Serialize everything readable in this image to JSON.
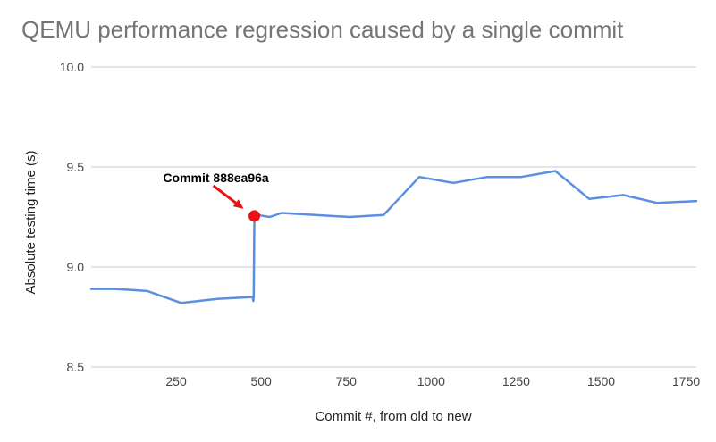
{
  "chart_data": {
    "type": "line",
    "title": "QEMU performance regression caused by a single commit",
    "xlabel": "Commit #, from old to new",
    "ylabel": "Absolute testing time (s)",
    "xlim": [
      0,
      1780
    ],
    "ylim": [
      8.5,
      10.0
    ],
    "x_ticks": [
      250,
      500,
      750,
      1000,
      1250,
      1500,
      1750
    ],
    "y_ticks": [
      8.5,
      9.0,
      9.5,
      10.0
    ],
    "y_tick_labels": [
      "8.5",
      "9.0",
      "9.5",
      "10.0"
    ],
    "grid": true,
    "legend": "none",
    "series": [
      {
        "color": "#5b8fe0",
        "x": [
          0,
          70,
          165,
          265,
          370,
          475,
          477,
          478,
          480,
          490,
          525,
          560,
          760,
          860,
          965,
          1065,
          1165,
          1265,
          1365,
          1465,
          1565,
          1665,
          1780
        ],
        "y": [
          8.89,
          8.89,
          8.88,
          8.82,
          8.84,
          8.85,
          8.83,
          8.85,
          9.27,
          9.26,
          9.25,
          9.27,
          9.25,
          9.26,
          9.45,
          9.42,
          9.45,
          9.45,
          9.48,
          9.34,
          9.36,
          9.32,
          9.33
        ]
      }
    ],
    "annotation": {
      "text": "Commit 888ea96a",
      "x": 480,
      "y": 9.255,
      "marker_color": "#e81414",
      "arrow_color": "#e81414"
    }
  }
}
